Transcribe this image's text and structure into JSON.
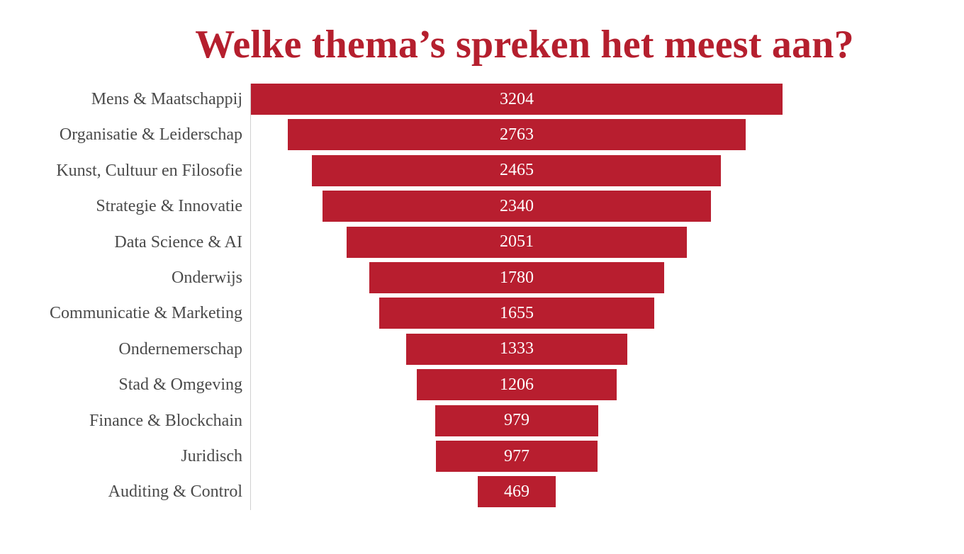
{
  "title": "Welke thema’s spreken het meest aan?",
  "colors": {
    "title": "#b51f2e",
    "bar": "#b81e2f",
    "label": "#4a4a4a",
    "value": "#ffffff"
  },
  "chart_data": {
    "type": "bar",
    "subtype": "funnel",
    "orientation": "horizontal",
    "title": "Welke thema’s spreken het meest aan?",
    "xlabel": "",
    "ylabel": "",
    "grid": false,
    "legend": null,
    "categories": [
      "Mens & Maatschappij",
      "Organisatie & Leiderschap",
      "Kunst, Cultuur en Filosofie",
      "Strategie & Innovatie",
      "Data Science & AI",
      "Onderwijs",
      "Communicatie & Marketing",
      "Ondernemerschap",
      "Stad & Omgeving",
      "Finance & Blockchain",
      "Juridisch",
      "Auditing & Control"
    ],
    "values": [
      3204,
      2763,
      2465,
      2340,
      2051,
      1780,
      1655,
      1333,
      1206,
      979,
      977,
      469
    ],
    "data_labels": [
      "3204",
      "2763",
      "2465",
      "2340",
      "2051",
      "1780",
      "1655",
      "1333",
      "1206",
      "979",
      "977",
      "469"
    ]
  }
}
